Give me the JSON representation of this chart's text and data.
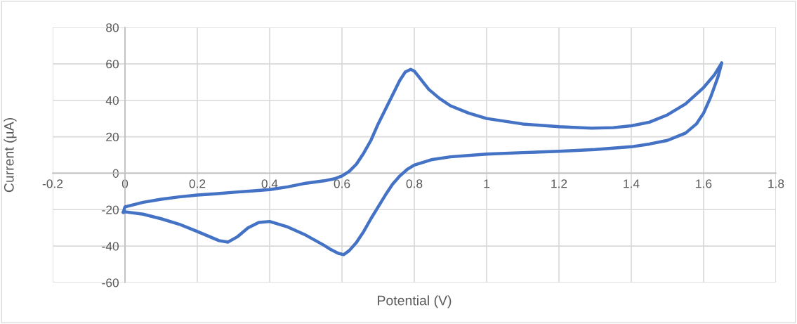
{
  "chart_data": {
    "type": "line",
    "xlabel": "Potential (V)",
    "ylabel": "Current (µA)",
    "series": [
      {
        "color": "#4472c4",
        "x": [
          -0.005,
          0,
          0.05,
          0.1,
          0.15,
          0.2,
          0.25,
          0.3,
          0.35,
          0.4,
          0.45,
          0.5,
          0.55,
          0.58,
          0.6,
          0.62,
          0.64,
          0.66,
          0.68,
          0.7,
          0.72,
          0.74,
          0.76,
          0.775,
          0.79,
          0.8,
          0.82,
          0.84,
          0.87,
          0.9,
          0.95,
          1.0,
          1.1,
          1.2,
          1.29,
          1.35,
          1.4,
          1.45,
          1.5,
          1.55,
          1.6,
          1.63,
          1.65
        ],
        "values": [
          -21.5,
          -18.5,
          -16,
          -14.3,
          -13,
          -12,
          -11.3,
          -10.5,
          -9.8,
          -9,
          -7.5,
          -5.5,
          -4.2,
          -3,
          -1.5,
          1,
          5,
          11,
          18,
          27,
          35,
          43,
          51,
          55.5,
          57,
          56,
          51,
          46,
          41,
          37,
          33,
          30,
          27,
          25.5,
          24.7,
          25,
          26,
          28,
          32,
          38,
          47,
          54,
          60.5
        ]
      },
      {
        "color": "#4472c4",
        "x": [
          1.65,
          1.64,
          1.62,
          1.6,
          1.58,
          1.55,
          1.5,
          1.45,
          1.4,
          1.3,
          1.2,
          1.1,
          1.0,
          0.9,
          0.85,
          0.8,
          0.78,
          0.76,
          0.74,
          0.72,
          0.7,
          0.68,
          0.66,
          0.64,
          0.62,
          0.605,
          0.59,
          0.57,
          0.55,
          0.5,
          0.45,
          0.4,
          0.37,
          0.34,
          0.31,
          0.285,
          0.26,
          0.2,
          0.15,
          0.1,
          0.05,
          0,
          -0.005
        ],
        "values": [
          60.5,
          53,
          42,
          33,
          27,
          22,
          18,
          16,
          14.5,
          13,
          12,
          11.3,
          10.5,
          9,
          7.5,
          4.5,
          2,
          -1.5,
          -6,
          -12,
          -18.5,
          -25,
          -32,
          -38,
          -42.5,
          -44.7,
          -44,
          -42,
          -39.5,
          -34,
          -29.5,
          -26.5,
          -27,
          -30,
          -35,
          -37.8,
          -37,
          -32,
          -28,
          -25,
          -22.5,
          -21.2,
          -21.5
        ]
      }
    ],
    "xlim": [
      -0.2,
      1.8
    ],
    "xticks": [
      -0.2,
      0,
      0.2,
      0.4,
      0.6,
      0.8,
      1,
      1.2,
      1.4,
      1.6,
      1.8
    ],
    "ylim": [
      -60,
      80
    ],
    "yticks": [
      -60,
      -40,
      -20,
      0,
      20,
      40,
      60,
      80
    ],
    "grid": true,
    "marker": "none",
    "line_style": "solid",
    "legend": false
  }
}
